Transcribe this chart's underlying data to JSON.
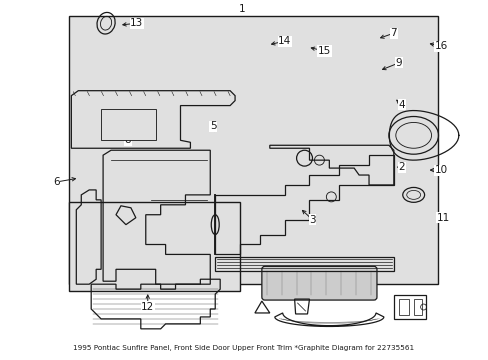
{
  "title": "1995 Pontiac Sunfire Panel, Front Side Door Upper Front Trim *Graphite Diagram for 22735561",
  "bg_color": "#ffffff",
  "panel_bg": "#e0e0e0",
  "line_color": "#1a1a1a",
  "fig_width": 4.89,
  "fig_height": 3.6,
  "dpi": 100,
  "label_fontsize": 7.5,
  "title_fontsize": 5.2
}
